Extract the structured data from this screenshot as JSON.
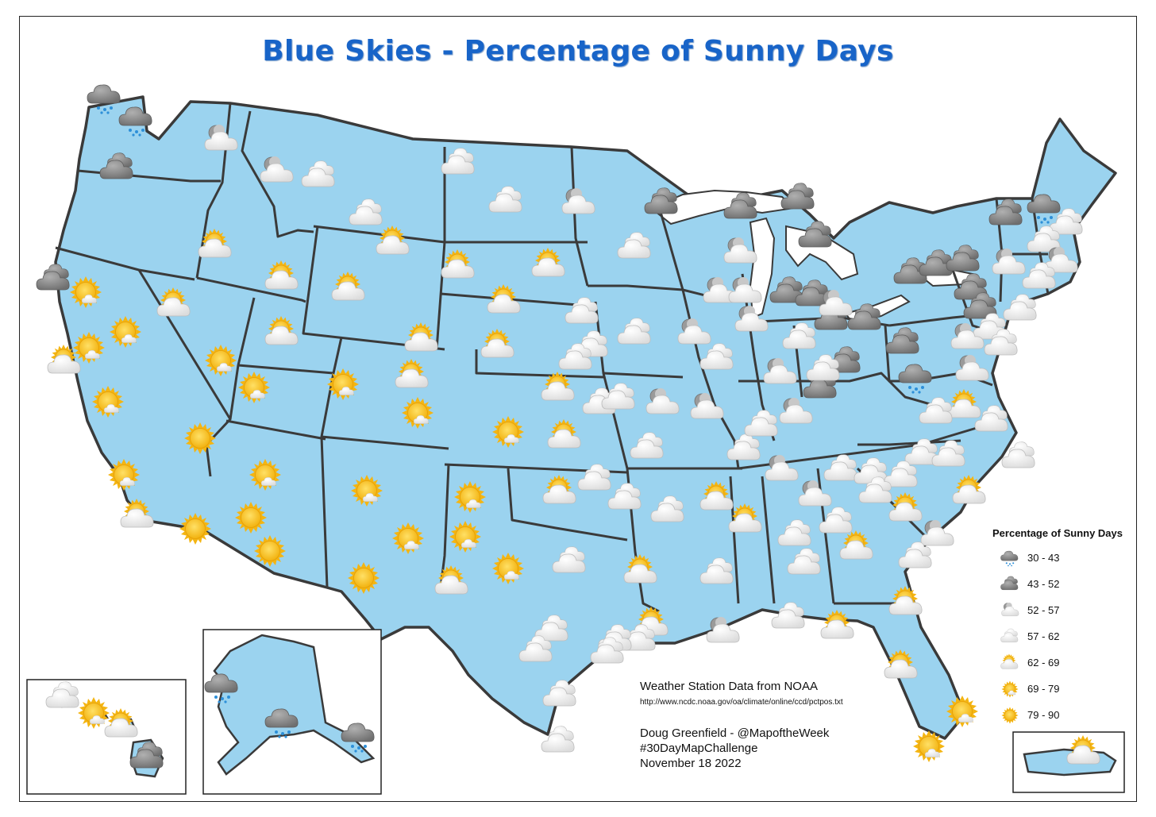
{
  "title": "Blue Skies - Percentage of Sunny Days",
  "colors": {
    "land": "#9bd3ef",
    "border": "#3a3a3a",
    "title": "#1864c8",
    "sun": "#f6c21c",
    "rain_cloud": "#8f8f8f",
    "cloud": "#f4f4f4"
  },
  "legend": {
    "title": "Percentage of Sunny Days",
    "items": [
      {
        "label": "30 - 43",
        "icon": "rain-cloud-icon"
      },
      {
        "label": "43 - 52",
        "icon": "gray-cloud-icon"
      },
      {
        "label": "52 - 57",
        "icon": "cloud-moon-icon"
      },
      {
        "label": "57 - 62",
        "icon": "white-cloud-icon"
      },
      {
        "label": "62 - 69",
        "icon": "sun-behind-cloud-icon"
      },
      {
        "label": "69 - 79",
        "icon": "sun-small-cloud-icon"
      },
      {
        "label": "79 - 90",
        "icon": "sun-icon"
      }
    ]
  },
  "credits": {
    "source_title": "Weather Station Data from NOAA",
    "source_url": "http://www.ncdc.noaa.gov/oa/climate/online/ccd/pctpos.txt",
    "author": "Doug Greenfield - @MapoftheWeek",
    "hashtag": "#30DayMapChallenge",
    "date": "November 18 2022"
  },
  "insets": [
    "Hawaii",
    "Alaska",
    "Puerto Rico"
  ]
}
